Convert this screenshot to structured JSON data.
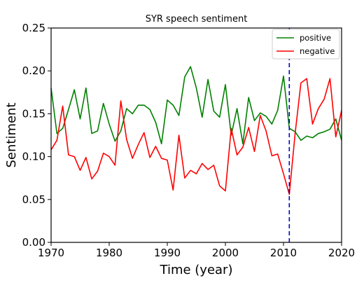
{
  "chart_data": {
    "type": "line",
    "title": "SYR speech sentiment",
    "xlabel": "Time (year)",
    "ylabel": "Sentiment",
    "xlim": [
      1970,
      2020
    ],
    "ylim": [
      0.0,
      0.25
    ],
    "xticks": [
      1970,
      1980,
      1990,
      2000,
      2010,
      2020
    ],
    "yticks": [
      0.0,
      0.05,
      0.1,
      0.15,
      0.2,
      0.25
    ],
    "xtick_labels": [
      "1970",
      "1980",
      "1990",
      "2000",
      "2010",
      "2020"
    ],
    "ytick_labels": [
      "0.00",
      "0.05",
      "0.10",
      "0.15",
      "0.20",
      "0.25"
    ],
    "grid": false,
    "legend_position": "top-right",
    "x": [
      1970,
      1971,
      1972,
      1973,
      1974,
      1975,
      1976,
      1977,
      1978,
      1979,
      1980,
      1981,
      1982,
      1983,
      1984,
      1985,
      1986,
      1987,
      1988,
      1989,
      1990,
      1991,
      1992,
      1993,
      1994,
      1995,
      1996,
      1997,
      1998,
      1999,
      2000,
      2001,
      2002,
      2003,
      2004,
      2005,
      2006,
      2007,
      2008,
      2009,
      2010,
      2011,
      2012,
      2013,
      2014,
      2015,
      2016,
      2017,
      2018,
      2019,
      2020
    ],
    "series": [
      {
        "name": "positive",
        "color": "#008000",
        "values": [
          0.18,
          0.127,
          0.133,
          0.155,
          0.178,
          0.144,
          0.18,
          0.127,
          0.13,
          0.162,
          0.138,
          0.118,
          0.13,
          0.156,
          0.15,
          0.16,
          0.16,
          0.155,
          0.14,
          0.115,
          0.166,
          0.16,
          0.148,
          0.193,
          0.205,
          0.18,
          0.146,
          0.19,
          0.153,
          0.146,
          0.184,
          0.125,
          0.156,
          0.115,
          0.169,
          0.142,
          0.151,
          0.147,
          0.138,
          0.154,
          0.194,
          0.133,
          0.129,
          0.119,
          0.124,
          0.122,
          0.127,
          0.129,
          0.132,
          0.144,
          0.119
        ]
      },
      {
        "name": "negative",
        "color": "#ff0000",
        "values": [
          0.108,
          0.119,
          0.159,
          0.102,
          0.1,
          0.084,
          0.099,
          0.074,
          0.083,
          0.104,
          0.1,
          0.09,
          0.165,
          0.12,
          0.098,
          0.114,
          0.128,
          0.099,
          0.112,
          0.098,
          0.096,
          0.061,
          0.125,
          0.075,
          0.084,
          0.08,
          0.092,
          0.085,
          0.09,
          0.066,
          0.06,
          0.133,
          0.102,
          0.111,
          0.134,
          0.106,
          0.148,
          0.13,
          0.101,
          0.103,
          0.08,
          0.056,
          0.127,
          0.186,
          0.191,
          0.138,
          0.156,
          0.167,
          0.191,
          0.123,
          0.154
        ]
      }
    ],
    "annotations": [
      {
        "type": "vertical-line",
        "x": 2011,
        "style": "dashed",
        "color": "#0000cc"
      }
    ]
  }
}
